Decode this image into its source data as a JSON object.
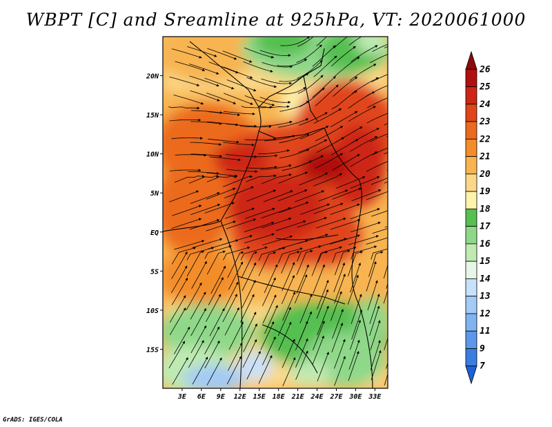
{
  "title": "WBPT [C] and Sreamline at 925hPa, VT: 2020061000",
  "footer": "GrADS: IGES/COLA",
  "map": {
    "x_ticks": [
      "3E",
      "6E",
      "9E",
      "12E",
      "15E",
      "18E",
      "21E",
      "24E",
      "27E",
      "30E",
      "33E"
    ],
    "y_ticks": [
      "20N",
      "15N",
      "10N",
      "5N",
      "EQ",
      "5S",
      "10S",
      "15S"
    ],
    "lon_range": [
      0,
      35
    ],
    "lat_range": [
      -20,
      25
    ]
  },
  "colorbar": {
    "labels": [
      "7",
      "9",
      "11",
      "12",
      "13",
      "14",
      "15",
      "16",
      "17",
      "18",
      "19",
      "20",
      "21",
      "22",
      "23",
      "24",
      "25",
      "26"
    ],
    "colors": [
      "#1f60d6",
      "#3a7de0",
      "#5b98ea",
      "#7fb4f0",
      "#a3cbf5",
      "#c8e1fa",
      "#e8f6e8",
      "#bfeab2",
      "#8fd88a",
      "#55bf50",
      "#fdf3ad",
      "#fbd888",
      "#f7b451",
      "#f38d2a",
      "#ec6a1e",
      "#e0441a",
      "#cd2615",
      "#b01010",
      "#8c0a0a"
    ]
  }
}
